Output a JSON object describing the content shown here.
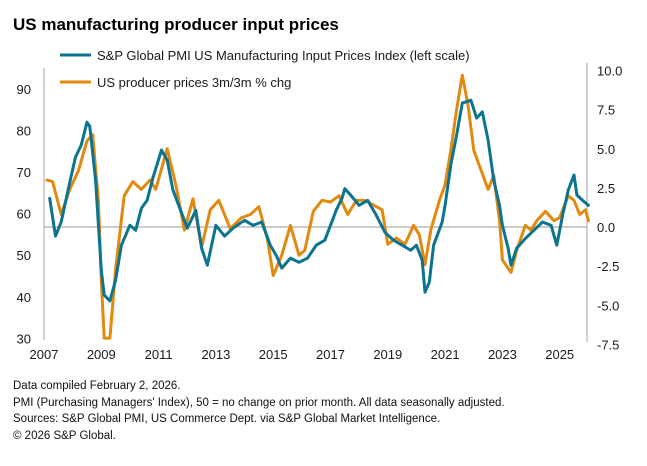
{
  "chart_data": {
    "type": "line",
    "title": "US manufacturing producer input prices",
    "xlabel": "",
    "ylabel_left": "",
    "ylabel_right": "",
    "xlim": [
      2007,
      2026.05
    ],
    "ylim_left": [
      30,
      95
    ],
    "ylim_right": [
      -7.5,
      11.0
    ],
    "x_ticks": [
      "2007",
      "2009",
      "2011",
      "2013",
      "2015",
      "2017",
      "2019",
      "2021",
      "2023",
      "2025"
    ],
    "x_tick_values": [
      2007,
      2009,
      2011,
      2013,
      2015,
      2017,
      2019,
      2021,
      2023,
      2025
    ],
    "y_ticks_left": [
      "30",
      "40",
      "50",
      "60",
      "70",
      "80",
      "90"
    ],
    "y_tick_values_left": [
      30,
      40,
      50,
      60,
      70,
      80,
      90
    ],
    "y_ticks_right": [
      "-7.5",
      "-5.0",
      "-2.5",
      "0.0",
      "2.5",
      "5.0",
      "7.5",
      "10.0"
    ],
    "y_tick_values_right": [
      -7.5,
      -5.0,
      -2.5,
      0.0,
      2.5,
      5.0,
      7.5,
      10.0
    ],
    "reference_line": {
      "axis": "right",
      "value": 0.0
    },
    "grid": false,
    "legend_position": "top-left",
    "series": [
      {
        "name": "S&P Global PMI US Manufacturing Input Prices Index (left scale)",
        "axis": "left",
        "color": "#0b7490",
        "x": [
          2007.2,
          2007.4,
          2007.6,
          2007.9,
          2008.1,
          2008.3,
          2008.5,
          2008.6,
          2008.8,
          2009.0,
          2009.1,
          2009.3,
          2009.5,
          2009.7,
          2010.0,
          2010.2,
          2010.4,
          2010.6,
          2010.8,
          2011.1,
          2011.3,
          2011.5,
          2011.7,
          2012.0,
          2012.3,
          2012.5,
          2012.7,
          2013.0,
          2013.3,
          2013.6,
          2014.0,
          2014.3,
          2014.6,
          2014.9,
          2015.1,
          2015.3,
          2015.6,
          2015.9,
          2016.2,
          2016.5,
          2016.8,
          2017.0,
          2017.2,
          2017.4,
          2017.5,
          2017.7,
          2018.0,
          2018.3,
          2018.6,
          2018.9,
          2019.2,
          2019.5,
          2019.8,
          2020.0,
          2020.2,
          2020.3,
          2020.45,
          2020.6,
          2020.9,
          2021.0,
          2021.2,
          2021.4,
          2021.6,
          2021.9,
          2022.1,
          2022.3,
          2022.5,
          2022.7,
          2022.9,
          2023.0,
          2023.2,
          2023.3,
          2023.5,
          2023.8,
          2024.1,
          2024.4,
          2024.7,
          2024.9,
          2025.1,
          2025.3,
          2025.5,
          2025.6,
          2025.8,
          2026.0
        ],
        "values": [
          63.7,
          54.6,
          58.0,
          67.6,
          73.6,
          76.5,
          82.0,
          81.0,
          68.0,
          46.4,
          40.4,
          39.0,
          44.0,
          52.4,
          57.2,
          56.0,
          61.3,
          63.2,
          68.6,
          75.3,
          72.9,
          65.7,
          62.0,
          56.5,
          60.8,
          51.7,
          47.6,
          57.2,
          54.6,
          56.5,
          58.4,
          57.2,
          58.0,
          52.4,
          50.0,
          46.9,
          49.3,
          48.3,
          49.3,
          52.4,
          53.6,
          57.2,
          60.8,
          63.7,
          66.0,
          64.5,
          62.0,
          63.2,
          59.6,
          55.5,
          53.6,
          52.4,
          51.2,
          52.4,
          48.8,
          41.1,
          43.5,
          52.4,
          58.0,
          62.0,
          71.7,
          78.9,
          86.6,
          87.3,
          83.0,
          84.5,
          77.7,
          68.0,
          62.0,
          57.2,
          51.7,
          47.6,
          51.7,
          54.0,
          56.0,
          58.0,
          57.2,
          52.4,
          59.6,
          65.7,
          69.3,
          64.5,
          63.2,
          62.0
        ]
      },
      {
        "name": "US producer prices  3m/3m % chg",
        "axis": "right",
        "color": "#e2890f",
        "x": [
          2007.1,
          2007.3,
          2007.6,
          2007.9,
          2008.2,
          2008.5,
          2008.7,
          2008.9,
          2009.0,
          2009.1,
          2009.3,
          2009.5,
          2009.8,
          2010.1,
          2010.4,
          2010.7,
          2010.9,
          2011.3,
          2011.6,
          2011.9,
          2012.2,
          2012.5,
          2012.8,
          2013.1,
          2013.5,
          2013.9,
          2014.2,
          2014.5,
          2014.8,
          2015.0,
          2015.3,
          2015.6,
          2015.9,
          2016.1,
          2016.4,
          2016.7,
          2017.0,
          2017.3,
          2017.6,
          2017.9,
          2018.2,
          2018.5,
          2018.8,
          2019.0,
          2019.3,
          2019.6,
          2019.9,
          2020.1,
          2020.3,
          2020.5,
          2020.8,
          2021.0,
          2021.2,
          2021.4,
          2021.6,
          2021.8,
          2022.0,
          2022.2,
          2022.5,
          2022.7,
          2022.9,
          2023.0,
          2023.3,
          2023.5,
          2023.8,
          2024.0,
          2024.2,
          2024.5,
          2024.8,
          2025.0,
          2025.3,
          2025.5,
          2025.7,
          2025.9,
          2026.0
        ],
        "values": [
          3.0,
          2.9,
          0.8,
          2.4,
          3.6,
          5.5,
          5.9,
          1.7,
          -3.4,
          -7.1,
          -7.1,
          -2.7,
          2.0,
          2.9,
          2.4,
          3.0,
          2.4,
          5.0,
          2.7,
          -0.2,
          1.8,
          -1.3,
          1.1,
          1.7,
          -0.1,
          0.6,
          0.8,
          1.3,
          -0.8,
          -3.1,
          -1.8,
          0.1,
          -1.8,
          -1.5,
          1.0,
          1.7,
          1.6,
          2.0,
          0.8,
          1.7,
          1.7,
          1.4,
          1.1,
          -1.1,
          -0.7,
          -1.1,
          0.1,
          -0.5,
          -2.4,
          -0.2,
          1.7,
          2.7,
          4.9,
          7.5,
          9.7,
          7.8,
          4.9,
          3.9,
          2.4,
          3.3,
          0.4,
          -2.1,
          -2.9,
          -1.5,
          0.1,
          -0.2,
          0.4,
          1.0,
          0.4,
          0.6,
          2.0,
          1.7,
          0.8,
          1.1,
          0.4
        ]
      }
    ]
  },
  "footnotes": [
    "Data compiled February 2, 2026.",
    "PMI (Purchasing Managers' Index), 50 = no change on prior month. All data seasonally adjusted.",
    "Sources: S&P Global PMI, US Commerce Dept. via S&P Global Market Intelligence.",
    "© 2026 S&P Global."
  ]
}
